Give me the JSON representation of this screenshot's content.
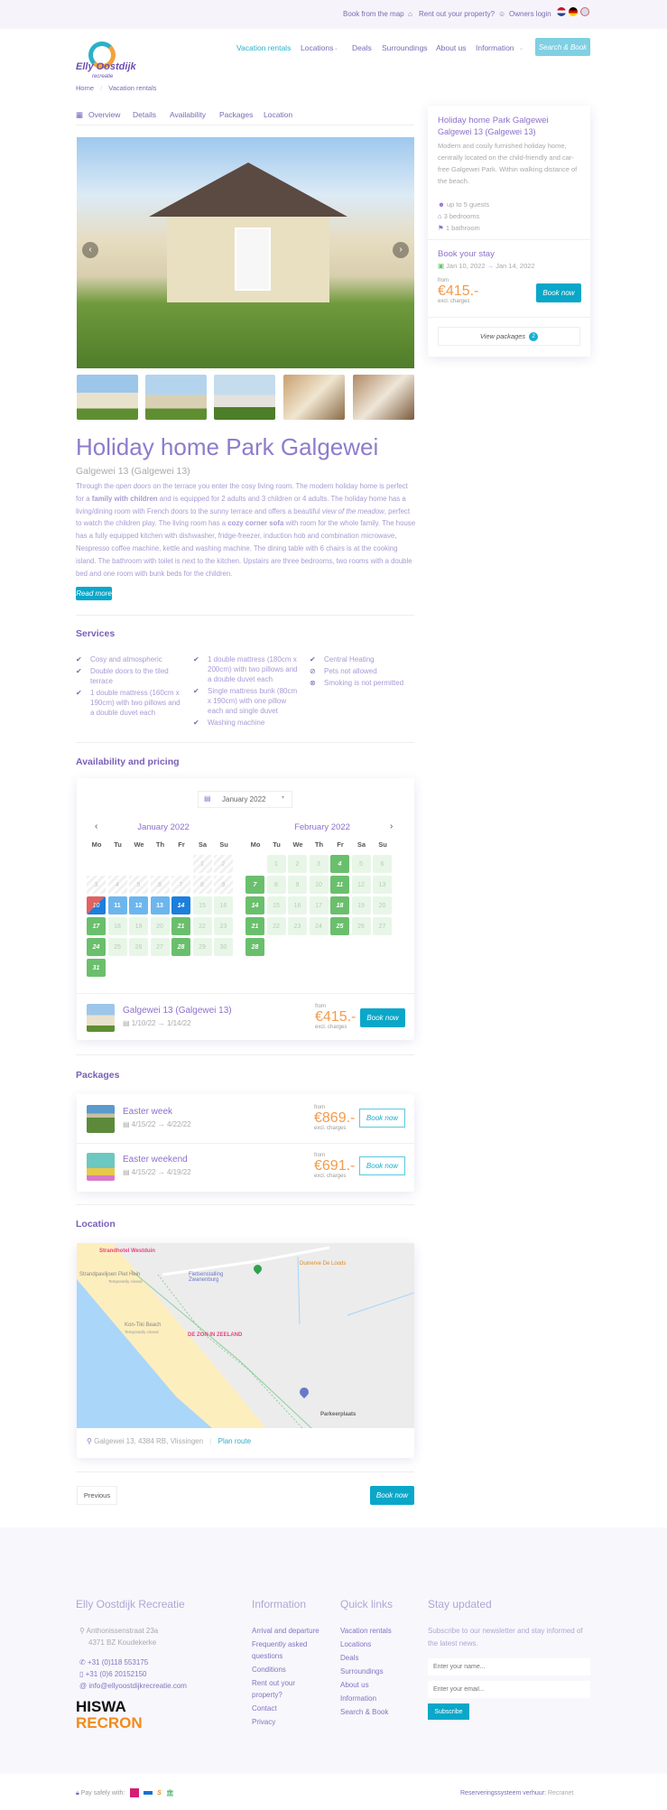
{
  "topbar": {
    "book_map": "Book from the map",
    "rent_out": "Rent out your property?",
    "owners_login": "Owners login",
    "languages": [
      "nl",
      "de",
      "en"
    ]
  },
  "header": {
    "logo_text": "Elly Oostdijk recreatie",
    "nav": [
      "Vacation rentals",
      "Locations",
      "Deals",
      "Surroundings",
      "About us",
      "Information"
    ],
    "search_book": "Search & Book"
  },
  "breadcrumb": [
    "Home",
    "Vacation rentals"
  ],
  "tabs": [
    "Overview",
    "Details",
    "Availability",
    "Packages",
    "Location"
  ],
  "sidebar": {
    "title": "Holiday home Park Galgewei",
    "subtitle": "Galgewei 13 (Galgewei 13)",
    "description": "Modern and cosily furnished holiday home, centrally located on the child-friendly and car-free Galgewei Park. Within walking distance of the beach.",
    "features": [
      "up to 5 guests",
      "3 bedrooms",
      "1 bathroom"
    ],
    "book_title": "Book your stay",
    "date_from": "Jan 10, 2022",
    "date_to": "Jan 14, 2022",
    "from": "from",
    "price": "€415.-",
    "excl": "excl. charges",
    "book_now": "Book now",
    "view_packages": "View packages",
    "packages_count": "2"
  },
  "main": {
    "title": "Holiday home Park Galgewei",
    "subtitle": "Galgewei 13 (Galgewei 13)",
    "description_html": "Through the <i>open doors</i> on the terrace you enter the cosy living room. The modern holiday home is perfect for a <b>family with children</b> and is equipped for 2 adults and 3 children or 4 adults. The holiday home has a living/dining room with French doors to the sunny terrace and offers a beautiful <i>view of the meadow</i>, perfect to watch the children play. The living room has a <b>cozy corner sofa</b> with room for the whole family. The house has a fully equipped kitchen with dishwasher, fridge-freezer, induction hob and combination microwave, Nespresso coffee machine, kettle and washing machine. The dining table with 6 chairs is at the cooking island. The bathroom with toilet is next to the kitchen. Upstairs are three bedrooms, two rooms with a double bed and one room with bunk beds for the children.",
    "read_more": "Read more"
  },
  "services": {
    "title": "Services",
    "columns": [
      [
        "Cosy and atmospheric",
        "Double doors to the tiled terrace",
        "1 double mattress (160cm x 190cm) with two pillows and a double duvet each"
      ],
      [
        "1 double mattress (180cm x 200cm) with two pillows and a double duvet each",
        "Single mattress bunk (80cm x 190cm) with one pillow each and single duvet",
        "Washing machine"
      ],
      [
        "Central Heating",
        "Pets not allowed",
        "Smoking is not permitted"
      ]
    ],
    "icons": [
      [
        "check",
        "check",
        "check"
      ],
      [
        "check",
        "check",
        "check"
      ],
      [
        "check",
        "no",
        "no-smoking"
      ]
    ]
  },
  "availability": {
    "title": "Availability and pricing",
    "month_select": "January 2022",
    "weekdays": [
      "Mo",
      "Tu",
      "We",
      "Th",
      "Fr",
      "Sa",
      "Su"
    ],
    "months": [
      {
        "label": "January 2022",
        "year": 2022,
        "month": 1,
        "days": 31,
        "past": [
          1,
          2,
          3,
          4,
          5,
          6,
          7,
          8,
          9
        ],
        "start": 10,
        "selected": [
          11,
          12,
          13
        ],
        "end": 14,
        "arrival": [
          17,
          21,
          24,
          28,
          31
        ]
      },
      {
        "label": "February 2022",
        "year": 2022,
        "month": 2,
        "days": 28,
        "past": [],
        "arrival": [
          4,
          7,
          11,
          14,
          18,
          21,
          25,
          28
        ]
      }
    ],
    "result": {
      "title": "Galgewei 13 (Galgewei 13)",
      "date_from": "1/10/22",
      "date_to": "1/14/22",
      "from": "from",
      "price": "€415.-",
      "excl": "excl. charges",
      "book_now": "Book now"
    }
  },
  "packages": {
    "title": "Packages",
    "items": [
      {
        "title": "Easter week",
        "date_from": "4/15/22",
        "date_to": "4/22/22",
        "from": "from",
        "price": "€869.-",
        "excl": "excl. charges",
        "book_now": "Book now"
      },
      {
        "title": "Easter weekend",
        "date_from": "4/15/22",
        "date_to": "4/19/22",
        "from": "from",
        "price": "€691.-",
        "excl": "excl. charges",
        "book_now": "Book now"
      }
    ]
  },
  "location": {
    "title": "Location",
    "address": "Galgewei 13, 4384 RB, Vlissingen",
    "plan_route": "Plan route",
    "map_labels": [
      "Strandhotel Westduin",
      "Strandpaviljoen Piet Hein",
      "Temporarily closed",
      "Fietsenstalling Zwanenburg",
      "Duinerve De Loods",
      "Kon-Tiki Beach",
      "Temporarily closed",
      "DE ZON IN ZEELAND",
      "Parkeerplaats"
    ]
  },
  "nav_buttons": {
    "previous": "Previous",
    "book_now": "Book now"
  },
  "footer": {
    "company": "Elly Oostdijk Recreatie",
    "address1": "Anthonissenstraat 23a",
    "address2": "4371 BZ Koudekerke",
    "phone": "+31 (0)118 553175",
    "mobile": "+31 (0)6 20152150",
    "email": "info@ellyoostdijkrecreatie.com",
    "hiswa": "HISWA",
    "recron": "RECRON",
    "information_title": "Information",
    "information": [
      "Arrival and departure",
      "Frequently asked questions",
      "Conditions",
      "Rent out your property?",
      "Contact",
      "Privacy"
    ],
    "quick_title": "Quick links",
    "quick": [
      "Vacation rentals",
      "Locations",
      "Deals",
      "Surroundings",
      "About us",
      "Information",
      "Search & Book"
    ],
    "news_title": "Stay updated",
    "news_text": "Subscribe to our newsletter and stay informed of the latest news.",
    "name_placeholder": "Enter your name...",
    "email_placeholder": "Enter your email...",
    "subscribe": "Subscribe",
    "pay_safely": "Pay safely with:",
    "credit_label": "Reserveringssysteem verhuur:",
    "credit_link": "Recranet"
  },
  "colors": {
    "accent": "#0aa7c9",
    "purple": "#7a5fb8",
    "price": "#f59a4a",
    "arrival": "#6abf6d"
  }
}
